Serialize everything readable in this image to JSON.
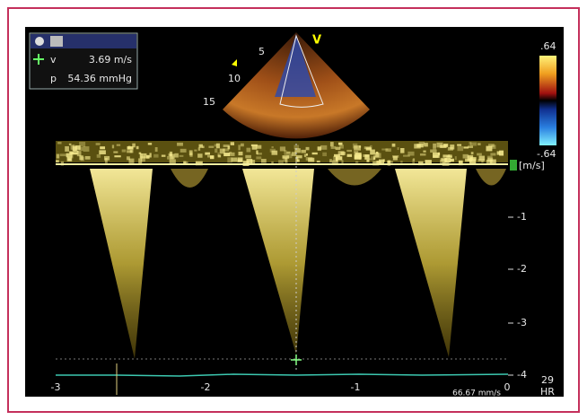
{
  "readout": {
    "v_label": "v",
    "v_value": "3.69 m/s",
    "p_label": "p",
    "p_value": "54.36 mmHg"
  },
  "sector": {
    "mode": "V",
    "depths": [
      "5",
      "10",
      "15"
    ]
  },
  "color_scale": {
    "max": ".64",
    "min": "-.64"
  },
  "spectrum": {
    "unit": "[m/s]",
    "y_ticks": [
      "-1",
      "-2",
      "-3",
      "-4"
    ],
    "x_ticks": [
      "-3",
      "-2",
      "-1",
      "0"
    ],
    "sweep_speed": "66.67 mm/s"
  },
  "heart_rate": {
    "value": "29",
    "label": "HR"
  }
}
